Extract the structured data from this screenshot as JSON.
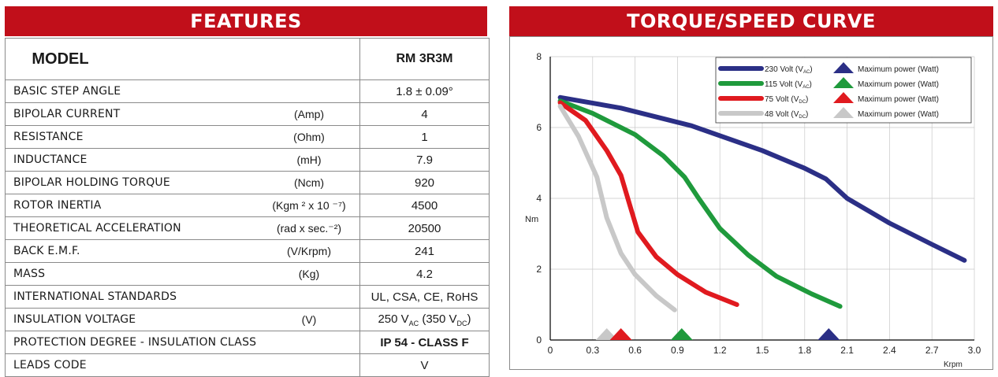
{
  "features": {
    "banner": "FEATURES",
    "model_label": "MODEL",
    "model_value": "RM 3R3M",
    "rows": [
      {
        "param": "BASIC STEP ANGLE",
        "unit": "",
        "value": "1.8 ± 0.09°"
      },
      {
        "param": "BIPOLAR CURRENT",
        "unit": "(Amp)",
        "value": "4"
      },
      {
        "param": "RESISTANCE",
        "unit": "(Ohm)",
        "value": "1"
      },
      {
        "param": "INDUCTANCE",
        "unit": "(mH)",
        "value": "7.9"
      },
      {
        "param": "BIPOLAR HOLDING TORQUE",
        "unit": "(Ncm)",
        "value": "920"
      },
      {
        "param": "ROTOR INERTIA",
        "unit": "(Kgm ² x 10 ⁻⁷)",
        "value": "4500"
      },
      {
        "param": "THEORETICAL ACCELERATION",
        "unit": "(rad x sec.⁻²)",
        "value": "20500"
      },
      {
        "param": "BACK E.M.F.",
        "unit": "(V/Krpm)",
        "value": "241"
      },
      {
        "param": "MASS",
        "unit": "(Kg)",
        "value": "4.2"
      },
      {
        "param": "INTERNATIONAL STANDARDS",
        "unit": "",
        "value": "UL, CSA, CE, RoHS"
      },
      {
        "param": "INSULATION VOLTAGE",
        "unit": "(V)",
        "value_parts": [
          "250 V",
          "AC",
          " (350 V",
          "DC",
          ")"
        ]
      },
      {
        "param": "PROTECTION DEGREE - INSULATION CLASS",
        "unit": "",
        "value": "IP 54 - CLASS F"
      },
      {
        "param": "LEADS CODE",
        "unit": "",
        "value": "V"
      }
    ]
  },
  "chart_data": {
    "type": "line",
    "title": "TORQUE/SPEED CURVE",
    "xlabel": "Krpm",
    "ylabel": "Nm",
    "xlim": [
      0,
      3.0
    ],
    "ylim": [
      0,
      8
    ],
    "xticks": [
      "0",
      "0.3",
      "0.6",
      "0.9",
      "1.2",
      "1.5",
      "1.8",
      "2.1",
      "2.4",
      "2.7",
      "3.0"
    ],
    "yticks": [
      "0",
      "2",
      "4",
      "6",
      "8"
    ],
    "grid": true,
    "legend_position": "top-right",
    "marker_label": "Maximum power (Watt)",
    "series": [
      {
        "name": "230 Volt",
        "sub": "AC",
        "color": "#2b2f86",
        "points": [
          [
            0.07,
            6.85
          ],
          [
            0.5,
            6.55
          ],
          [
            1.0,
            6.05
          ],
          [
            1.5,
            5.35
          ],
          [
            1.8,
            4.85
          ],
          [
            1.95,
            4.55
          ],
          [
            2.1,
            4.0
          ],
          [
            2.4,
            3.3
          ],
          [
            2.7,
            2.7
          ],
          [
            2.93,
            2.25
          ]
        ],
        "marker_x": 1.97
      },
      {
        "name": "115 Volt",
        "sub": "AC",
        "color": "#1f9a3c",
        "points": [
          [
            0.07,
            6.75
          ],
          [
            0.3,
            6.4
          ],
          [
            0.6,
            5.8
          ],
          [
            0.8,
            5.2
          ],
          [
            0.95,
            4.6
          ],
          [
            1.05,
            4.0
          ],
          [
            1.2,
            3.15
          ],
          [
            1.4,
            2.4
          ],
          [
            1.6,
            1.8
          ],
          [
            1.85,
            1.3
          ],
          [
            2.05,
            0.95
          ]
        ],
        "marker_x": 0.93
      },
      {
        "name": "75 Volt",
        "sub": "DC",
        "color": "#e01a1f",
        "points": [
          [
            0.07,
            6.7
          ],
          [
            0.25,
            6.2
          ],
          [
            0.4,
            5.35
          ],
          [
            0.5,
            4.65
          ],
          [
            0.56,
            3.85
          ],
          [
            0.62,
            3.05
          ],
          [
            0.75,
            2.35
          ],
          [
            0.9,
            1.85
          ],
          [
            1.1,
            1.35
          ],
          [
            1.32,
            1.0
          ]
        ],
        "marker_x": 0.5
      },
      {
        "name": "48 Volt",
        "sub": "DC",
        "color": "#c8c8c8",
        "points": [
          [
            0.07,
            6.6
          ],
          [
            0.2,
            5.75
          ],
          [
            0.33,
            4.6
          ],
          [
            0.4,
            3.45
          ],
          [
            0.5,
            2.45
          ],
          [
            0.6,
            1.85
          ],
          [
            0.75,
            1.25
          ],
          [
            0.88,
            0.85
          ]
        ],
        "marker_x": 0.4
      }
    ]
  }
}
